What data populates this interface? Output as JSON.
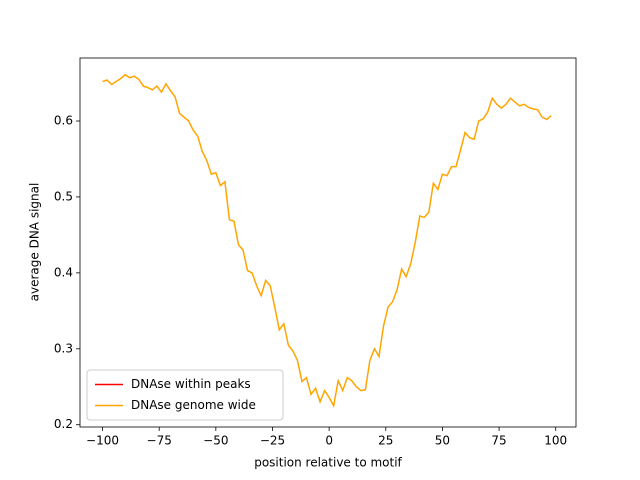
{
  "chart_data": {
    "type": "line",
    "xlabel": "position relative to motif",
    "ylabel": "average DNA signal",
    "x": [
      -100,
      -98,
      -96,
      -94,
      -92,
      -90,
      -88,
      -86,
      -84,
      -82,
      -80,
      -78,
      -76,
      -74,
      -72,
      -70,
      -68,
      -66,
      -64,
      -62,
      -60,
      -58,
      -56,
      -54,
      -52,
      -50,
      -48,
      -46,
      -44,
      -42,
      -40,
      -38,
      -36,
      -34,
      -32,
      -30,
      -28,
      -26,
      -24,
      -22,
      -20,
      -18,
      -16,
      -14,
      -12,
      -10,
      -8,
      -6,
      -4,
      -2,
      0,
      2,
      4,
      6,
      8,
      10,
      12,
      14,
      16,
      18,
      20,
      22,
      24,
      26,
      28,
      30,
      32,
      34,
      36,
      38,
      40,
      42,
      44,
      46,
      48,
      50,
      52,
      54,
      56,
      58,
      60,
      62,
      64,
      66,
      68,
      70,
      72,
      74,
      76,
      78,
      80,
      82,
      84,
      86,
      88,
      90,
      92,
      94,
      96,
      98
    ],
    "series": [
      {
        "name": "DNAse within peaks",
        "color": "#ff0000",
        "values": [
          null,
          null,
          null,
          null,
          null,
          null,
          null,
          null,
          null,
          null,
          null,
          null,
          null,
          null,
          null,
          null,
          null,
          null,
          null,
          null,
          null,
          null,
          null,
          null,
          null,
          null,
          null,
          null,
          null,
          null,
          null,
          null,
          null,
          null,
          null,
          null,
          null,
          null,
          null,
          null,
          null,
          null,
          null,
          null,
          null,
          null,
          null,
          null,
          null,
          null,
          null,
          null,
          null,
          null,
          null,
          null,
          null,
          null,
          null,
          null,
          null,
          null,
          null,
          null,
          null,
          null,
          null,
          null,
          null,
          null,
          null,
          null,
          null,
          null,
          null,
          null,
          null,
          null,
          null,
          null,
          null,
          null,
          null,
          null,
          null,
          null,
          null,
          null,
          null,
          null,
          null,
          null,
          null,
          null,
          null,
          null,
          null,
          null,
          null,
          null
        ]
      },
      {
        "name": "DNAse genome wide",
        "color": "#ffa500",
        "values": [
          0.652,
          0.654,
          0.648,
          0.652,
          0.656,
          0.661,
          0.657,
          0.659,
          0.655,
          0.646,
          0.644,
          0.641,
          0.646,
          0.638,
          0.649,
          0.64,
          0.632,
          0.61,
          0.605,
          0.6,
          0.588,
          0.58,
          0.56,
          0.548,
          0.53,
          0.532,
          0.515,
          0.52,
          0.47,
          0.468,
          0.437,
          0.43,
          0.403,
          0.4,
          0.383,
          0.37,
          0.39,
          0.383,
          0.355,
          0.325,
          0.333,
          0.305,
          0.297,
          0.285,
          0.257,
          0.262,
          0.24,
          0.248,
          0.23,
          0.245,
          0.236,
          0.225,
          0.258,
          0.245,
          0.262,
          0.258,
          0.25,
          0.245,
          0.246,
          0.285,
          0.3,
          0.29,
          0.33,
          0.355,
          0.362,
          0.378,
          0.405,
          0.395,
          0.412,
          0.44,
          0.475,
          0.473,
          0.48,
          0.518,
          0.51,
          0.53,
          0.528,
          0.54,
          0.54,
          0.562,
          0.585,
          0.578,
          0.576,
          0.6,
          0.603,
          0.612,
          0.63,
          0.622,
          0.617,
          0.622,
          0.63,
          0.625,
          0.62,
          0.622,
          0.618,
          0.616,
          0.615,
          0.605,
          0.602,
          0.607
        ]
      }
    ],
    "xlim": [
      -109.95,
      108.95
    ],
    "ylim": [
      0.197,
      0.683
    ],
    "xticks": [
      {
        "value": -100,
        "label": "−100"
      },
      {
        "value": -75,
        "label": "−75"
      },
      {
        "value": -50,
        "label": "−50"
      },
      {
        "value": -25,
        "label": "−25"
      },
      0,
      25,
      50,
      75,
      100
    ],
    "yticks": [
      0.2,
      0.3,
      0.4,
      0.5,
      0.6
    ],
    "legend": "lower left"
  }
}
